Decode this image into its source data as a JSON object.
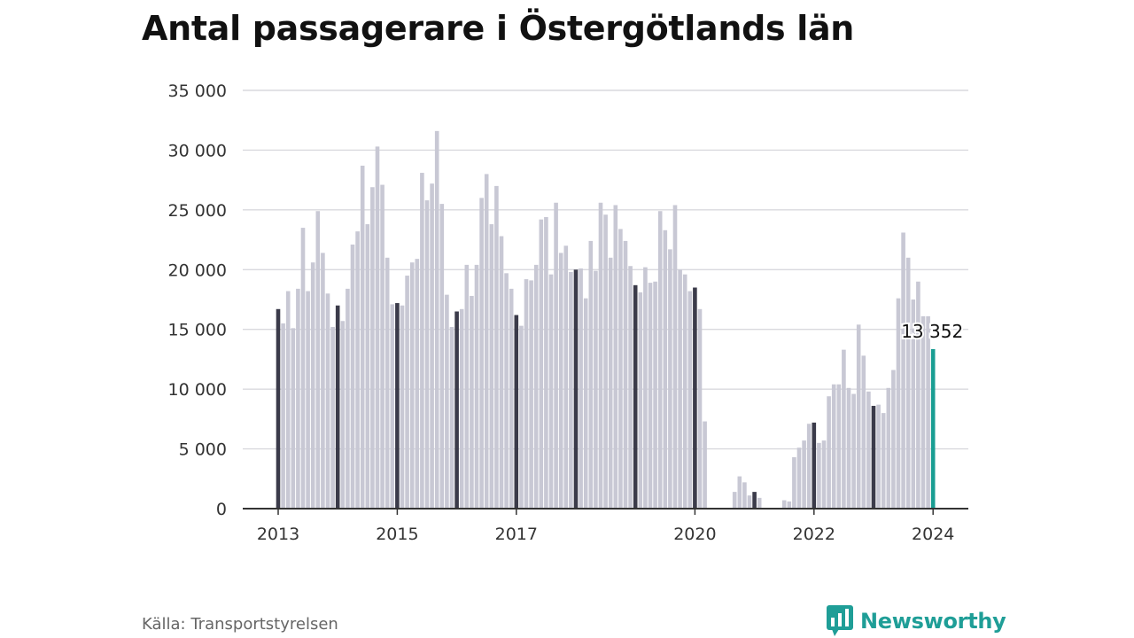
{
  "title": "Antal passagerare i Östergötlands län",
  "source": "Källa: Transportstyrelsen",
  "brand": {
    "name": "Newsworthy",
    "icon": "newsworthy-logo-icon"
  },
  "colors": {
    "bar": "#c8c8d4",
    "january_bar": "#3b3b4a",
    "latest_bar": "#1a9e93",
    "grid": "#d9d9de",
    "axis": "#333333",
    "brand": "#1f9e97"
  },
  "chart_data": {
    "type": "bar",
    "start": "2013-01",
    "frequency": "monthly",
    "ylim": [
      0,
      35000
    ],
    "yticks": [
      0,
      5000,
      10000,
      15000,
      20000,
      25000,
      30000,
      35000
    ],
    "ytick_labels": [
      "0",
      "5 000",
      "10 000",
      "15 000",
      "20 000",
      "25 000",
      "30 000",
      "35 000"
    ],
    "xtick_labels": [
      "2013",
      "2015",
      "2017",
      "2020",
      "2022",
      "2024"
    ],
    "xticks": [
      "2013-01",
      "2015-01",
      "2017-01",
      "2020-01",
      "2022-01",
      "2024-01"
    ],
    "grid": true,
    "highlight": "January of each year dark; latest month teal",
    "latest_label": "13 352",
    "values": [
      16700,
      15500,
      18200,
      15100,
      18400,
      23500,
      18200,
      20600,
      24900,
      21400,
      18000,
      15200,
      17000,
      15700,
      18400,
      22100,
      23200,
      28700,
      23800,
      26900,
      30300,
      27100,
      21000,
      17100,
      17200,
      17000,
      19500,
      20600,
      20900,
      28100,
      25800,
      27200,
      31600,
      25500,
      17900,
      15200,
      16500,
      16700,
      20400,
      17800,
      20400,
      26000,
      28000,
      23800,
      27000,
      22800,
      19700,
      18400,
      16200,
      15300,
      19200,
      19100,
      20400,
      24200,
      24400,
      19600,
      25600,
      21400,
      22000,
      19800,
      20000,
      20100,
      17600,
      22400,
      19900,
      25600,
      24600,
      21000,
      25400,
      23400,
      22400,
      20300,
      18700,
      18100,
      20200,
      18900,
      19000,
      24900,
      23300,
      21700,
      25400,
      20000,
      19600,
      18200,
      18500,
      16700,
      7300,
      0,
      0,
      0,
      0,
      0,
      1400,
      2700,
      2200,
      1100,
      1400,
      900,
      0,
      0,
      0,
      0,
      700,
      600,
      4300,
      5100,
      5700,
      7100,
      7200,
      5500,
      5700,
      9400,
      10400,
      10400,
      13300,
      10100,
      9600,
      15400,
      12800,
      9800,
      8600,
      8700,
      8000,
      10100,
      11600,
      17600,
      23100,
      21000,
      17500,
      19000,
      16100,
      16100,
      13352
    ]
  }
}
